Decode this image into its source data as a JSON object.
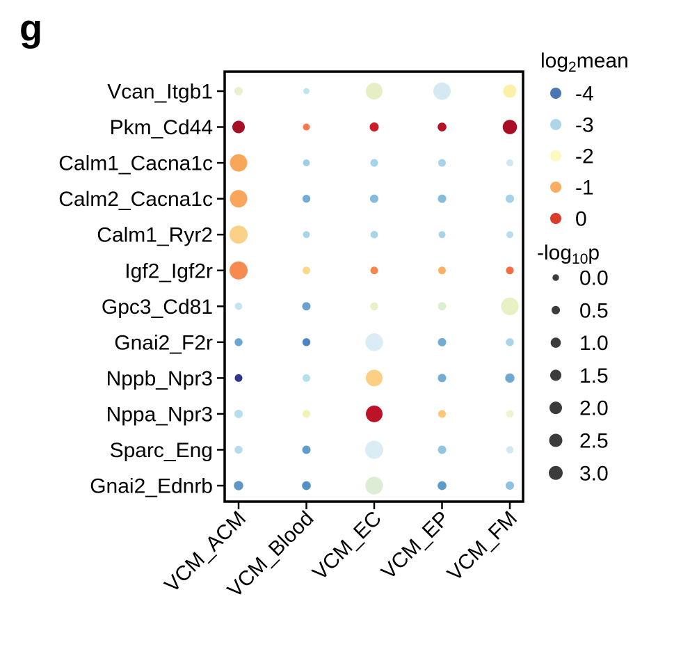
{
  "panel_label": "g",
  "chart_data": {
    "type": "scatter",
    "subtype": "dot-plot (ligand-receptor interaction matrix)",
    "grid": false,
    "legend_position": "right",
    "x_categories": [
      "VCM_ACM",
      "VCM_Blood",
      "VCM_EC",
      "VCM_EP",
      "VCM_FM"
    ],
    "y_categories": [
      "Vcan_Itgb1",
      "Pkm_Cd44",
      "Calm1_Cacna1c",
      "Calm2_Cacna1c",
      "Calm1_Ryr2",
      "Igf2_Igf2r",
      "Gpc3_Cd81",
      "Gnai2_F2r",
      "Nppb_Npr3",
      "Nppa_Npr3",
      "Sparc_Eng",
      "Gnai2_Ednrb"
    ],
    "color_legend": {
      "title": "log2mean",
      "title_parts": {
        "pre": "log",
        "sub": "2",
        "post": "mean"
      },
      "entries": [
        {
          "value": "-4",
          "color": "#4a77b4"
        },
        {
          "value": "-3",
          "color": "#abd7e8"
        },
        {
          "value": "-2",
          "color": "#fbfbc0"
        },
        {
          "value": "-1",
          "color": "#f9ad62"
        },
        {
          "value": "0",
          "color": "#dd3b2b"
        }
      ]
    },
    "size_legend": {
      "title": "-log10p",
      "title_parts": {
        "pre": "-log",
        "sub": "10",
        "post": "p"
      },
      "dot_color": "#3b3b3b",
      "entries": [
        {
          "value": "0.0",
          "r": 4.7
        },
        {
          "value": "0.5",
          "r": 6.0
        },
        {
          "value": "1.0",
          "r": 7.3
        },
        {
          "value": "1.5",
          "r": 8.0
        },
        {
          "value": "2.0",
          "r": 9.0
        },
        {
          "value": "2.5",
          "r": 9.5
        },
        {
          "value": "3.0",
          "r": 10.0
        }
      ]
    },
    "rows": [
      {
        "label": "Vcan_Itgb1",
        "dots": [
          {
            "log2mean": -2.1,
            "neg_log10p": 0.5,
            "color": "#e9f0ce",
            "r": 6.0
          },
          {
            "log2mean": -2.8,
            "neg_log10p": 0.0,
            "color": "#c2e3f0",
            "r": 4.5
          },
          {
            "log2mean": -2.1,
            "neg_log10p": 4.7,
            "color": "#e6efc4",
            "r": 12.0
          },
          {
            "log2mean": -2.7,
            "neg_log10p": 5.0,
            "color": "#d6e9f2",
            "r": 12.5
          },
          {
            "log2mean": -1.8,
            "neg_log10p": 2.6,
            "color": "#fbf0a7",
            "r": 9.5
          }
        ]
      },
      {
        "label": "Pkm_Cd44",
        "dots": [
          {
            "log2mean": 0.6,
            "neg_log10p": 2.3,
            "color": "#a60f26",
            "r": 9.0
          },
          {
            "log2mean": -0.6,
            "neg_log10p": 0.1,
            "color": "#f47850",
            "r": 5.0
          },
          {
            "log2mean": 0.2,
            "neg_log10p": 0.8,
            "color": "#cd1b28",
            "r": 6.5
          },
          {
            "log2mean": 0.5,
            "neg_log10p": 0.7,
            "color": "#b51127",
            "r": 6.3
          },
          {
            "log2mean": 0.6,
            "neg_log10p": 3.2,
            "color": "#a90e26",
            "r": 10.3
          }
        ]
      },
      {
        "label": "Calm1_Cacna1c",
        "dots": [
          {
            "log2mean": -1.0,
            "neg_log10p": 5.2,
            "color": "#f9a65a",
            "r": 12.5
          },
          {
            "log2mean": -3.1,
            "neg_log10p": 0.1,
            "color": "#9fcfe7",
            "r": 5.0
          },
          {
            "log2mean": -3.0,
            "neg_log10p": 0.3,
            "color": "#a5d3e9",
            "r": 5.5
          },
          {
            "log2mean": -3.0,
            "neg_log10p": 0.3,
            "color": "#a7d3e9",
            "r": 5.5
          },
          {
            "log2mean": -2.7,
            "neg_log10p": 0.1,
            "color": "#cfe7f3",
            "r": 5.0
          }
        ]
      },
      {
        "label": "Calm2_Cacna1c",
        "dots": [
          {
            "log2mean": -1.0,
            "neg_log10p": 5.2,
            "color": "#f9a55c",
            "r": 12.5
          },
          {
            "log2mean": -3.4,
            "neg_log10p": 0.4,
            "color": "#74add1",
            "r": 5.7
          },
          {
            "log2mean": -3.3,
            "neg_log10p": 0.5,
            "color": "#85bcdc",
            "r": 6.0
          },
          {
            "log2mean": -3.3,
            "neg_log10p": 0.5,
            "color": "#85bcdc",
            "r": 6.0
          },
          {
            "log2mean": -3.0,
            "neg_log10p": 0.5,
            "color": "#a5d2e9",
            "r": 6.0
          }
        ]
      },
      {
        "label": "Calm1_Ryr2",
        "dots": [
          {
            "log2mean": -1.3,
            "neg_log10p": 5.7,
            "color": "#fbd087",
            "r": 13.0
          },
          {
            "log2mean": -3.0,
            "neg_log10p": 0.1,
            "color": "#a8d4e9",
            "r": 5.0
          },
          {
            "log2mean": -3.0,
            "neg_log10p": 0.2,
            "color": "#a8d4e9",
            "r": 5.3
          },
          {
            "log2mean": -3.0,
            "neg_log10p": 0.1,
            "color": "#a8d4e9",
            "r": 5.0
          },
          {
            "log2mean": -2.9,
            "neg_log10p": 0.1,
            "color": "#b8dcee",
            "r": 5.0
          }
        ]
      },
      {
        "label": "Igf2_Igf2r",
        "dots": [
          {
            "log2mean": -0.7,
            "neg_log10p": 5.7,
            "color": "#f58b51",
            "r": 13.0
          },
          {
            "log2mean": -1.4,
            "neg_log10p": 0.3,
            "color": "#fcd98a",
            "r": 5.5
          },
          {
            "log2mean": -0.7,
            "neg_log10p": 0.3,
            "color": "#f5874e",
            "r": 5.5
          },
          {
            "log2mean": -1.1,
            "neg_log10p": 0.3,
            "color": "#fbb267",
            "r": 5.5
          },
          {
            "log2mean": -0.5,
            "neg_log10p": 0.3,
            "color": "#f36c42",
            "r": 5.5
          }
        ]
      },
      {
        "label": "Gpc3_Cd81",
        "dots": [
          {
            "log2mean": -2.8,
            "neg_log10p": 0.2,
            "color": "#c5e3f0",
            "r": 5.3
          },
          {
            "log2mean": -3.5,
            "neg_log10p": 0.5,
            "color": "#68a2cd",
            "r": 6.0
          },
          {
            "log2mean": -2.1,
            "neg_log10p": 0.4,
            "color": "#e9f0c5",
            "r": 5.7
          },
          {
            "log2mean": -2.2,
            "neg_log10p": 0.5,
            "color": "#ddeed3",
            "r": 6.0
          },
          {
            "log2mean": -2.1,
            "neg_log10p": 5.4,
            "color": "#e7f1c3",
            "r": 12.7
          }
        ]
      },
      {
        "label": "Gnai2_F2r",
        "dots": [
          {
            "log2mean": -3.5,
            "neg_log10p": 0.4,
            "color": "#6ca6d1",
            "r": 5.7
          },
          {
            "log2mean": -3.8,
            "neg_log10p": 0.4,
            "color": "#4c86c0",
            "r": 5.7
          },
          {
            "log2mean": -2.6,
            "neg_log10p": 5.4,
            "color": "#daedf6",
            "r": 12.7
          },
          {
            "log2mean": -3.4,
            "neg_log10p": 0.5,
            "color": "#74abd3",
            "r": 6.0
          },
          {
            "log2mean": -3.0,
            "neg_log10p": 0.4,
            "color": "#a8d5ea",
            "r": 5.7
          }
        ]
      },
      {
        "label": "Nppb_Npr3",
        "dots": [
          {
            "log2mean": -4.7,
            "neg_log10p": 0.3,
            "color": "#30368e",
            "r": 5.5
          },
          {
            "log2mean": -2.9,
            "neg_log10p": 0.3,
            "color": "#b8e0ec",
            "r": 5.5
          },
          {
            "log2mean": -1.3,
            "neg_log10p": 4.7,
            "color": "#fbd084",
            "r": 12.0
          },
          {
            "log2mean": -3.4,
            "neg_log10p": 0.5,
            "color": "#74add1",
            "r": 6.0
          },
          {
            "log2mean": -3.5,
            "neg_log10p": 0.9,
            "color": "#6fa8d2",
            "r": 6.7
          }
        ]
      },
      {
        "label": "Nppa_Npr3",
        "dots": [
          {
            "log2mean": -2.9,
            "neg_log10p": 0.5,
            "color": "#b8ddec",
            "r": 6.0
          },
          {
            "log2mean": -2.0,
            "neg_log10p": 0.3,
            "color": "#f3f2b6",
            "r": 5.5
          },
          {
            "log2mean": 0.4,
            "neg_log10p": 4.7,
            "color": "#bd1227",
            "r": 12.0
          },
          {
            "log2mean": -1.2,
            "neg_log10p": 0.3,
            "color": "#fbc778",
            "r": 5.5
          },
          {
            "log2mean": -2.0,
            "neg_log10p": 0.3,
            "color": "#eff3ce",
            "r": 5.5
          }
        ]
      },
      {
        "label": "Sparc_Eng",
        "dots": [
          {
            "log2mean": -2.9,
            "neg_log10p": 0.4,
            "color": "#b5dcec",
            "r": 5.7
          },
          {
            "log2mean": -3.6,
            "neg_log10p": 0.5,
            "color": "#629dca",
            "r": 6.0
          },
          {
            "log2mean": -2.6,
            "neg_log10p": 5.7,
            "color": "#daedf5",
            "r": 13.0
          },
          {
            "log2mean": -3.2,
            "neg_log10p": 0.5,
            "color": "#92c5e0",
            "r": 6.0
          },
          {
            "log2mean": -2.7,
            "neg_log10p": 0.2,
            "color": "#cfe8f2",
            "r": 5.3
          }
        ]
      },
      {
        "label": "Gnai2_Ednrb",
        "dots": [
          {
            "log2mean": -3.6,
            "neg_log10p": 0.9,
            "color": "#5c97c6",
            "r": 6.7
          },
          {
            "log2mean": -3.7,
            "neg_log10p": 0.7,
            "color": "#5390c5",
            "r": 6.3
          },
          {
            "log2mean": -2.2,
            "neg_log10p": 5.4,
            "color": "#ddedd5",
            "r": 12.7
          },
          {
            "log2mean": -3.6,
            "neg_log10p": 0.7,
            "color": "#5e9ac9",
            "r": 6.3
          },
          {
            "log2mean": -3.2,
            "neg_log10p": 0.5,
            "color": "#8ec3e0",
            "r": 6.0
          }
        ]
      }
    ]
  }
}
